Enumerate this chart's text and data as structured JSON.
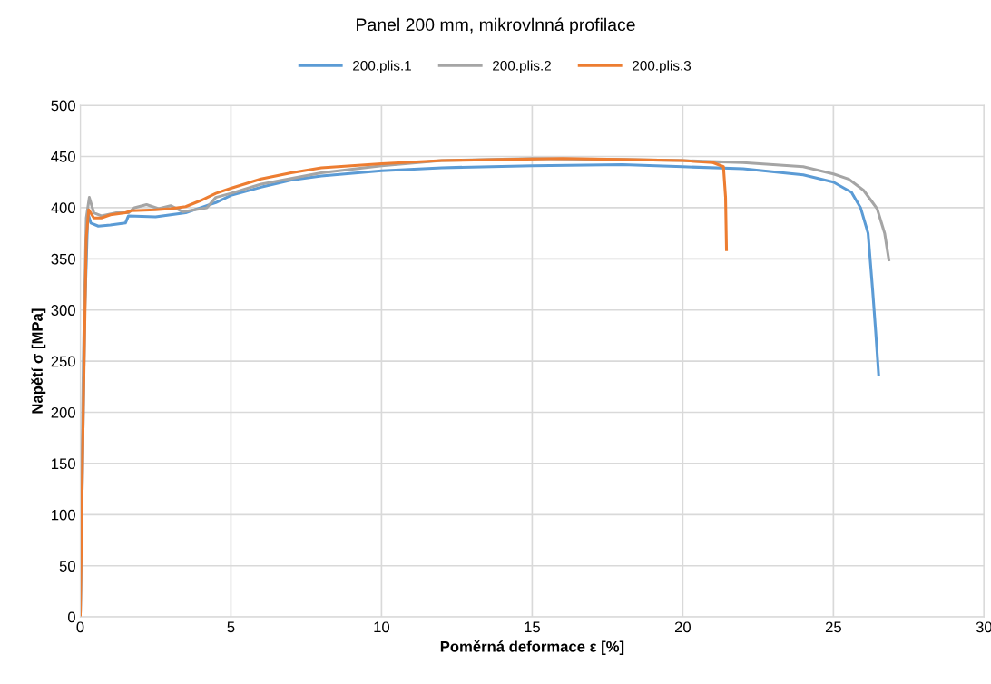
{
  "chart_data": {
    "type": "line",
    "title": "Panel 200 mm, mikrovlnná profilace",
    "xlabel": "Poměrná deformace ε [%]",
    "ylabel": "Napětí σ [MPa]",
    "xlim": [
      0,
      30
    ],
    "xticks": [
      0,
      5,
      10,
      15,
      20,
      25,
      30
    ],
    "ylim": [
      0,
      500
    ],
    "yticks": [
      0,
      50,
      100,
      150,
      200,
      250,
      300,
      350,
      400,
      450,
      500
    ],
    "grid": true,
    "legend": "top",
    "marker": "none",
    "line_style": "solid",
    "series": [
      {
        "name": "200.plis.1",
        "color": "#5b9bd5",
        "x": [
          0,
          0.15,
          0.25,
          0.35,
          0.6,
          1.0,
          1.5,
          1.6,
          2.5,
          3,
          3.5,
          4,
          4.5,
          5,
          6,
          7,
          8,
          10,
          12,
          15,
          18,
          20,
          22,
          24,
          25,
          25.6,
          25.9,
          26.15,
          26.3,
          26.4,
          26.5
        ],
        "values": [
          0,
          300,
          395,
          385,
          382,
          383,
          385,
          392,
          391,
          393,
          395,
          400,
          405,
          412,
          420,
          427,
          431,
          436,
          439,
          441,
          442,
          440,
          438,
          432,
          425,
          415,
          400,
          375,
          320,
          280,
          237
        ]
      },
      {
        "name": "200.plis.2",
        "color": "#a5a5a5",
        "x": [
          0,
          0.1,
          0.2,
          0.3,
          0.45,
          0.7,
          1.2,
          1.6,
          1.8,
          2.2,
          2.6,
          3,
          3.4,
          3.8,
          4.2,
          4.5,
          5,
          6,
          8,
          10,
          12,
          15,
          18,
          20,
          22,
          24,
          25,
          25.5,
          26,
          26.3,
          26.45,
          26.7,
          26.84
        ],
        "values": [
          0,
          250,
          390,
          410,
          395,
          392,
          395,
          395,
          400,
          403,
          399,
          402,
          396,
          398,
          400,
          410,
          414,
          423,
          434,
          441,
          446,
          448,
          447,
          446,
          444,
          440,
          433,
          428,
          417,
          405,
          399,
          375,
          349
        ]
      },
      {
        "name": "200.plis.3",
        "color": "#ed7d31",
        "x": [
          0,
          0.1,
          0.2,
          0.28,
          0.45,
          0.7,
          1,
          1.5,
          1.7,
          2.5,
          3,
          3.5,
          4,
          4.5,
          5,
          6,
          7,
          8,
          10,
          12,
          14,
          16,
          18,
          20,
          21,
          21.35,
          21.42,
          21.45
        ],
        "values": [
          0,
          200,
          370,
          398,
          390,
          390,
          393,
          395,
          397,
          398,
          399,
          401,
          407,
          414,
          419,
          428,
          434,
          439,
          443,
          446,
          447,
          448,
          447,
          446,
          444,
          440,
          410,
          359
        ]
      }
    ]
  }
}
